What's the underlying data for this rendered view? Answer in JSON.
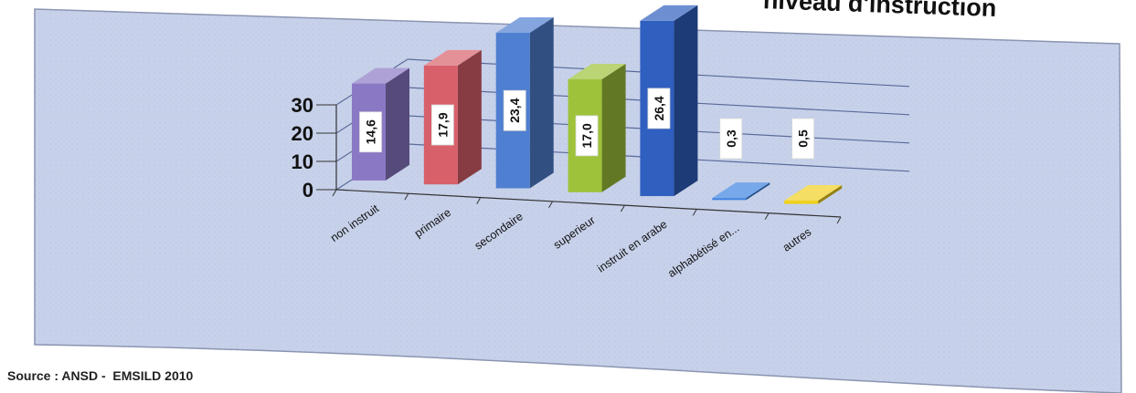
{
  "chart_data": {
    "type": "bar",
    "title": "niveau d'instruction",
    "categories": [
      "non instruit",
      "primaire",
      "secondaire",
      "superieur",
      "instruit en arabe",
      "alphabétisé en...",
      "autres"
    ],
    "values": [
      14.6,
      17.9,
      23.4,
      17.0,
      26.4,
      0.3,
      0.5
    ],
    "data_labels": [
      "14,6",
      "17,9",
      "23,4",
      "17,0",
      "26,4",
      "0,3",
      "0,5"
    ],
    "yticks": [
      "0",
      "10",
      "20",
      "30"
    ],
    "ylim": [
      0,
      30
    ],
    "grid": true,
    "legend": "none",
    "colors": [
      "#8a78c4",
      "#d8606a",
      "#4f7fd0",
      "#9ec23a",
      "#2f5fbf",
      "#3d82e0",
      "#f0d020"
    ]
  },
  "source": "Source : ANSD -  EMSILD 2010",
  "colors": {
    "panel": "#c7d1ea",
    "panel_border": "#8a94b0",
    "grid": "#5a6a9a",
    "axis": "#333333"
  }
}
